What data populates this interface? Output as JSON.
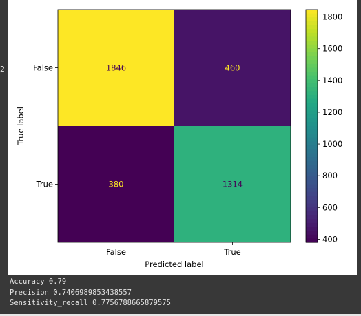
{
  "gutter_text": "2",
  "chart_data": {
    "type": "heatmap",
    "colormap": "viridis",
    "xlabel": "Predicted label",
    "ylabel": "True label",
    "x_categories": [
      "False",
      "True"
    ],
    "y_categories": [
      "False",
      "True"
    ],
    "matrix": [
      [
        1846,
        460
      ],
      [
        380,
        1314
      ]
    ],
    "colorbar": {
      "range": [
        380,
        1846
      ],
      "ticks": [
        400,
        600,
        800,
        1000,
        1200,
        1400,
        1600,
        1800
      ]
    }
  },
  "output_lines": [
    "Accuracy 0.79",
    "Precision 0.7406989853438557",
    "Sensitivity_recall 0.7756788665879575"
  ]
}
